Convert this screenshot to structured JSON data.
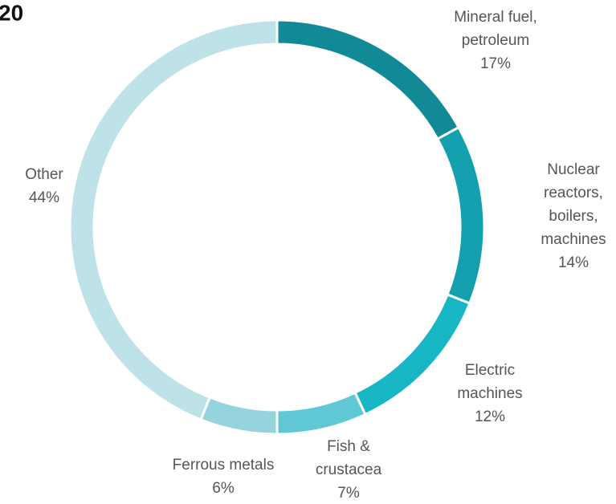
{
  "chart_data": {
    "type": "donut",
    "title": "20",
    "categories": [
      [
        "Mineral fuel,",
        "petroleum"
      ],
      [
        "Nuclear",
        "reactors,",
        "boilers,",
        "machines"
      ],
      [
        "Electric",
        "machines"
      ],
      [
        "Fish &",
        "crustacea"
      ],
      [
        "Ferrous metals"
      ],
      [
        "Other"
      ]
    ],
    "values": [
      17,
      14,
      12,
      7,
      6,
      44
    ],
    "value_labels": [
      "17%",
      "14%",
      "12%",
      "7%",
      "6%",
      "44%"
    ],
    "colors": [
      "#128a96",
      "#139fae",
      "#17b6c5",
      "#5fc8d4",
      "#96d4dd",
      "#bde2e8"
    ]
  }
}
